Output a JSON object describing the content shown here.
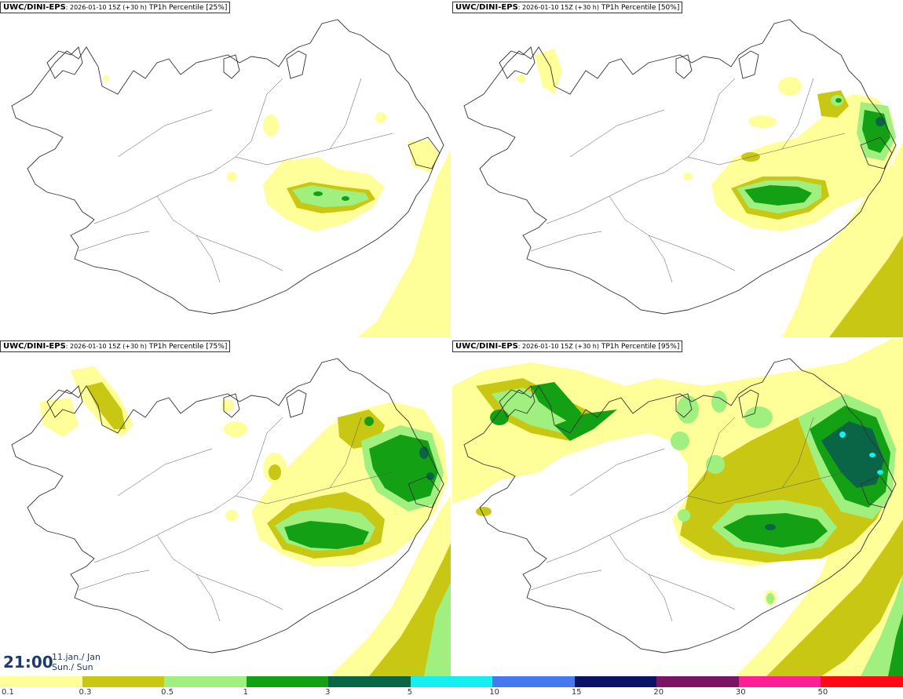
{
  "panels": [
    {
      "model": "UWC/DINI-EPS",
      "meta": ": 2026-01-10 15Z (+30 h)",
      "label": " TP1h Percentile [25%]"
    },
    {
      "model": "UWC/DINI-EPS",
      "meta": ": 2026-01-10 15Z (+30 h)",
      "label": " TP1h Percentile [50%]"
    },
    {
      "model": "UWC/DINI-EPS",
      "meta": ": 2026-01-10 15Z (+30 h)",
      "label": " TP1h Percentile [75%]"
    },
    {
      "model": "UWC/DINI-EPS",
      "meta": ": 2026-01-10 15Z (+30 h)",
      "label": " TP1h Percentile [95%]"
    }
  ],
  "valid_time": {
    "time": "21:00",
    "date_line1": "11.jan./ Jan",
    "date_line2": "Sun./ Sun"
  },
  "colorbar": {
    "labels": [
      "0.1",
      "0.3",
      "0.5",
      "1",
      "3",
      "5",
      "10",
      "15",
      "20",
      "30",
      "50"
    ],
    "colors": [
      "#ffff99",
      "#c8c814",
      "#a0f080",
      "#14a014",
      "#0a6446",
      "#14f0f0",
      "#4678f0",
      "#0a1464",
      "#7a1464",
      "#ff1e96",
      "#ff0a14"
    ]
  },
  "colors": {
    "coast": "#333333",
    "river": "#555555"
  }
}
